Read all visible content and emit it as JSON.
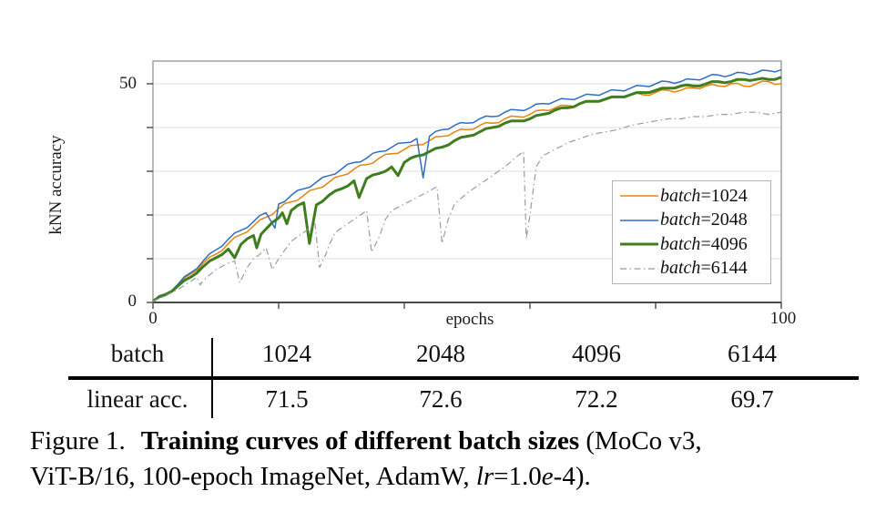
{
  "chart_data": {
    "type": "line",
    "title": "",
    "xlabel": "epochs",
    "ylabel": "kNN accuracy",
    "xlim": [
      0,
      100
    ],
    "ylim": [
      0,
      55.2
    ],
    "xticks": [
      0,
      20,
      40,
      60,
      80,
      100
    ],
    "yticks": [
      0,
      10,
      20,
      30,
      40,
      50
    ],
    "tick_labels": {
      "x_left": "0",
      "x_right": "100",
      "y_bottom": "0",
      "y_top": "50"
    },
    "grid": "horizontal-only",
    "legend_position": "lower-right-inside",
    "style": {
      "grid_color": "#dcdcdc",
      "spine_color": "#8a8a8a",
      "axis_color": "#4a4a4a",
      "background": "#ffffff"
    },
    "series": [
      {
        "name": "batch=1024",
        "color": "#E5850E",
        "width": 1.5,
        "dash": null,
        "noise": 1.8,
        "x": [
          0,
          2,
          4,
          6,
          8,
          10,
          12,
          14,
          16,
          18,
          20,
          22,
          24,
          26,
          28,
          30,
          32,
          34,
          36,
          38,
          40,
          42,
          44,
          46,
          48,
          50,
          52,
          54,
          56,
          58,
          60,
          62,
          64,
          66,
          68,
          70,
          72,
          74,
          76,
          78,
          80,
          82,
          84,
          86,
          88,
          90,
          92,
          94,
          96,
          98,
          100
        ],
        "y": [
          0.3,
          2,
          4,
          6.5,
          9,
          11,
          13.5,
          15.5,
          17.5,
          19.5,
          21.5,
          23,
          24.5,
          26,
          27.5,
          29,
          30.5,
          31.5,
          33,
          34,
          35,
          36,
          37,
          38,
          39,
          39.5,
          40.5,
          41,
          42,
          42.5,
          43,
          44,
          44.5,
          45,
          45.5,
          46,
          46.5,
          47,
          47.5,
          47.5,
          48,
          48.5,
          48.5,
          49,
          49.5,
          49.5,
          50,
          49.5,
          50,
          50.5,
          50
        ]
      },
      {
        "name": "batch=2048",
        "color": "#2F6DC6",
        "width": 1.5,
        "dash": null,
        "noise": 1.8,
        "x": [
          0,
          2,
          4,
          6,
          8,
          10,
          12,
          14,
          16,
          18,
          19.4,
          20,
          22,
          24,
          26,
          28,
          30,
          32,
          34,
          36,
          38,
          40,
          42,
          43,
          44,
          46,
          48,
          50,
          52,
          54,
          56,
          58,
          60,
          62,
          64,
          66,
          68,
          70,
          72,
          74,
          76,
          78,
          80,
          82,
          84,
          86,
          88,
          90,
          92,
          94,
          96,
          98,
          100
        ],
        "y": [
          0.3,
          2,
          4.2,
          6.8,
          9.5,
          12,
          14.5,
          16.5,
          18.5,
          20.5,
          17,
          22.5,
          24.5,
          26,
          27.5,
          29,
          30.5,
          32,
          33,
          34.5,
          35.5,
          36.5,
          37.5,
          28.5,
          38,
          39.5,
          40.5,
          41,
          42,
          42.5,
          43.5,
          44,
          44.5,
          45.5,
          46,
          46.5,
          47,
          47.5,
          48,
          48.5,
          49,
          49.5,
          50,
          50.5,
          50.5,
          51,
          51.5,
          52,
          52,
          52.5,
          52.5,
          53,
          53.2
        ]
      },
      {
        "name": "batch=4096",
        "color": "#3F7D1E",
        "width": 3,
        "dash": null,
        "noise": 1.2,
        "x": [
          0,
          2,
          4,
          6,
          8,
          10,
          12,
          13,
          14,
          16,
          16.5,
          17.2,
          18,
          20,
          20.6,
          21.3,
          22,
          24,
          24.9,
          26,
          28,
          30,
          32,
          32.8,
          34,
          36,
          38,
          39,
          40,
          42,
          44,
          46,
          48,
          50,
          52,
          54,
          56,
          58,
          60,
          62,
          64,
          66,
          68,
          70,
          72,
          74,
          76,
          78,
          80,
          82,
          84,
          86,
          88,
          90,
          92,
          94,
          96,
          98,
          100
        ],
        "y": [
          0.3,
          1.8,
          3.8,
          5.8,
          8.2,
          10.2,
          12.2,
          10.2,
          13.3,
          15.3,
          12.5,
          15.6,
          16.8,
          19.3,
          20.5,
          18,
          21,
          22.8,
          13.5,
          22.3,
          24.5,
          26,
          27.8,
          24,
          28.3,
          29.5,
          31,
          29,
          32,
          33.5,
          34.5,
          35.5,
          37,
          38,
          39,
          40,
          41,
          41.5,
          42,
          43,
          44,
          44.5,
          45.5,
          46,
          46.5,
          47,
          47.5,
          48,
          48.5,
          49,
          49.5,
          49.5,
          50,
          50.5,
          50.5,
          51,
          51,
          51,
          51.5
        ]
      },
      {
        "name": "batch=6144",
        "color": "#9C9C9C",
        "width": 1.2,
        "dash": "7 3.5 1.5 3.5",
        "noise": 0,
        "x": [
          0,
          2,
          4,
          6,
          7,
          7.5,
          8,
          10,
          12,
          13,
          13.8,
          15,
          16,
          17,
          18,
          19,
          20,
          22,
          24,
          25.8,
          26.5,
          27.5,
          28,
          29,
          30,
          32,
          34,
          34.8,
          36,
          37,
          38,
          40,
          42,
          44,
          45.2,
          46,
          47,
          48,
          50,
          52,
          54,
          56,
          58,
          59,
          59.4,
          60,
          61,
          62,
          64,
          66,
          68,
          70,
          72,
          74,
          76,
          78,
          80,
          82,
          84,
          86,
          88,
          90,
          92,
          94,
          96,
          98,
          100
        ],
        "y": [
          0.3,
          1.5,
          3,
          4.8,
          5.8,
          4,
          5,
          7.5,
          9,
          9.5,
          4.5,
          8,
          10,
          11,
          12.5,
          7.5,
          10,
          14,
          16,
          18,
          8,
          11,
          13,
          16,
          17,
          19,
          21,
          11.5,
          15,
          19,
          21,
          22.5,
          24,
          25.5,
          26.5,
          13.5,
          19,
          22.5,
          25,
          27,
          29,
          31,
          33.5,
          34.5,
          14.5,
          20,
          31,
          33.5,
          35,
          36.5,
          37.5,
          38.5,
          39,
          39.5,
          40.5,
          41,
          41.5,
          42,
          42,
          42.5,
          42.5,
          43,
          43,
          43.5,
          43.5,
          43,
          43.5
        ]
      }
    ]
  },
  "table": {
    "header_label": "batch",
    "row_label": "linear acc.",
    "columns": [
      "1024",
      "2048",
      "4096",
      "6144"
    ],
    "values": [
      "71.5",
      "72.6",
      "72.2",
      "69.7"
    ]
  },
  "caption": {
    "figure_label": "Figure 1.",
    "bold_text": "Training curves of different batch sizes",
    "line1_tail": "(MoCo v3,",
    "line2_start": "ViT-B/16, 100-epoch ImageNet, AdamW, ",
    "lr_italic": "lr",
    "lr_value": "=1.0",
    "e_italic": "e",
    "tail": "-4)."
  }
}
